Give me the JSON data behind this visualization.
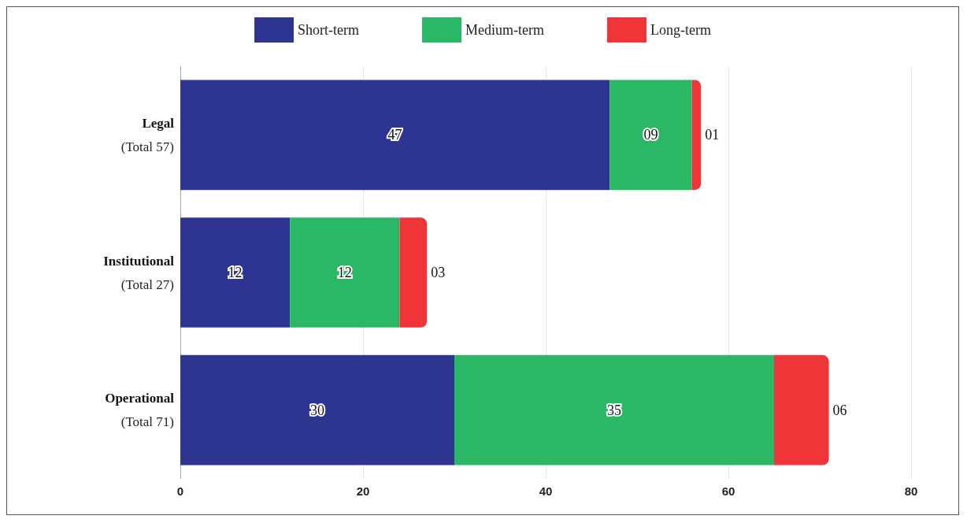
{
  "chart_data": {
    "type": "bar",
    "orientation": "horizontal",
    "stacked": true,
    "categories": [
      "Legal",
      "Institutional",
      "Operational"
    ],
    "totals": [
      "(Total 57)",
      "(Total 27)",
      "(Total 71)"
    ],
    "series": [
      {
        "name": "Short-term",
        "color": "#2e3591",
        "values": [
          47,
          12,
          30
        ],
        "value_labels": [
          "47",
          "12",
          "30"
        ]
      },
      {
        "name": "Medium-term",
        "color": "#2bb866",
        "values": [
          9,
          12,
          35
        ],
        "value_labels": [
          "09",
          "12",
          "35"
        ]
      },
      {
        "name": "Long-term",
        "color": "#ef3537",
        "values": [
          1,
          3,
          6
        ],
        "value_labels": [
          "01",
          "03",
          "06"
        ]
      }
    ],
    "xlim": [
      0,
      80
    ],
    "xticks": [
      0,
      20,
      40,
      60,
      80
    ],
    "grid": "x",
    "legend": "top"
  }
}
